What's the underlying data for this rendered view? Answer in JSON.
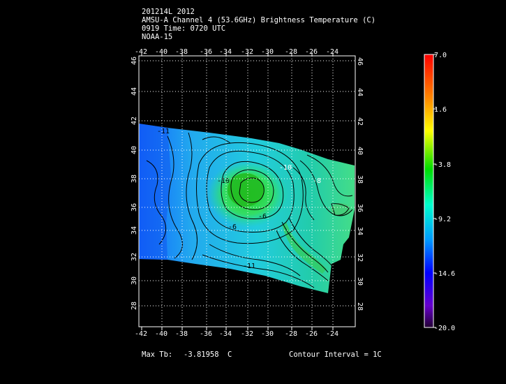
{
  "header": {
    "line1": "201214L 2012",
    "line2": "AMSU-A Channel 4 (53.6GHz) Brightness Temperature (C)",
    "line3": "0919 Time: 0720 UTC",
    "line4": "NOAA-15"
  },
  "map": {
    "lon_ticks": [
      "-42",
      "-40",
      "-38",
      "-36",
      "-34",
      "-32",
      "-30",
      "-28",
      "-26",
      "-24"
    ],
    "lat_ticks": [
      "46",
      "44",
      "42",
      "40",
      "38",
      "36",
      "34",
      "32",
      "30",
      "28"
    ],
    "contour_labels": [
      "-10",
      "-11",
      "-6",
      "-6",
      "-11",
      "-10",
      "-8"
    ]
  },
  "colorbar": {
    "labels": [
      "7.0",
      "1.6",
      "-3.8",
      "-9.2",
      "-14.6",
      "-20.0"
    ],
    "colors": [
      "#ff0000",
      "#ffaa00",
      "#ffff00",
      "#00dd00",
      "#00ffcc",
      "#0088ff",
      "#0000ff",
      "#6600cc",
      "#2a004a"
    ]
  },
  "footer": {
    "max_label": "Max Tb:",
    "max_value": "-3.81958",
    "max_unit": "C",
    "contour_interval": "Contour Interval = 1C"
  }
}
